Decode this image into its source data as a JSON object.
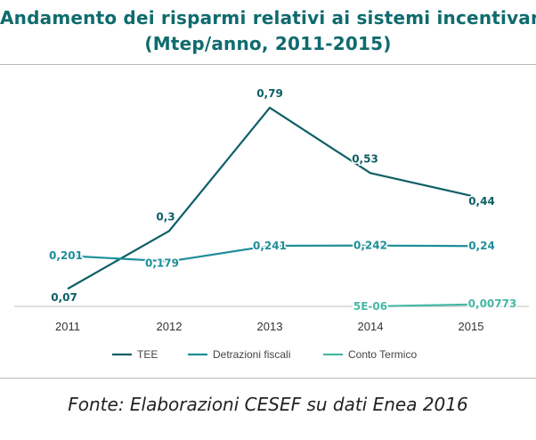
{
  "title_line1": "Andamento dei risparmi relativi ai sistemi incentivanti",
  "title_line2": "(Mtep/anno, 2011-2015)",
  "source_note": "Fonte: Elaborazioni CESEF su dati Enea 2016",
  "colors": {
    "title": "#0f6b6e",
    "tee": "#0d5f66",
    "detrazioni": "#1e8e98",
    "conto_termico": "#46b8a4",
    "axis": "#bdbdbd"
  },
  "chart_data": {
    "type": "line",
    "x": [
      "2011",
      "2012",
      "2013",
      "2014",
      "2015"
    ],
    "ylim": [
      0,
      0.85
    ],
    "grid": false,
    "legend_position": "bottom",
    "series": [
      {
        "name": "TEE",
        "color": "#0d5f66",
        "values": [
          0.07,
          0.3,
          0.79,
          0.53,
          0.44
        ],
        "labels": [
          "0,07",
          "0,3",
          "0,79",
          "0,53",
          "0,44"
        ]
      },
      {
        "name": "Detrazioni fiscali",
        "color": "#1e8e98",
        "values": [
          0.201,
          0.179,
          0.241,
          0.242,
          0.24
        ],
        "labels": [
          "0,201",
          "0,179",
          "0,241",
          "0,242",
          "0,24"
        ]
      },
      {
        "name": "Conto Termico",
        "color": "#46b8a4",
        "values": [
          null,
          null,
          null,
          5e-06,
          0.00773
        ],
        "labels": [
          null,
          null,
          null,
          "5E-06",
          "0,00773"
        ]
      }
    ]
  }
}
